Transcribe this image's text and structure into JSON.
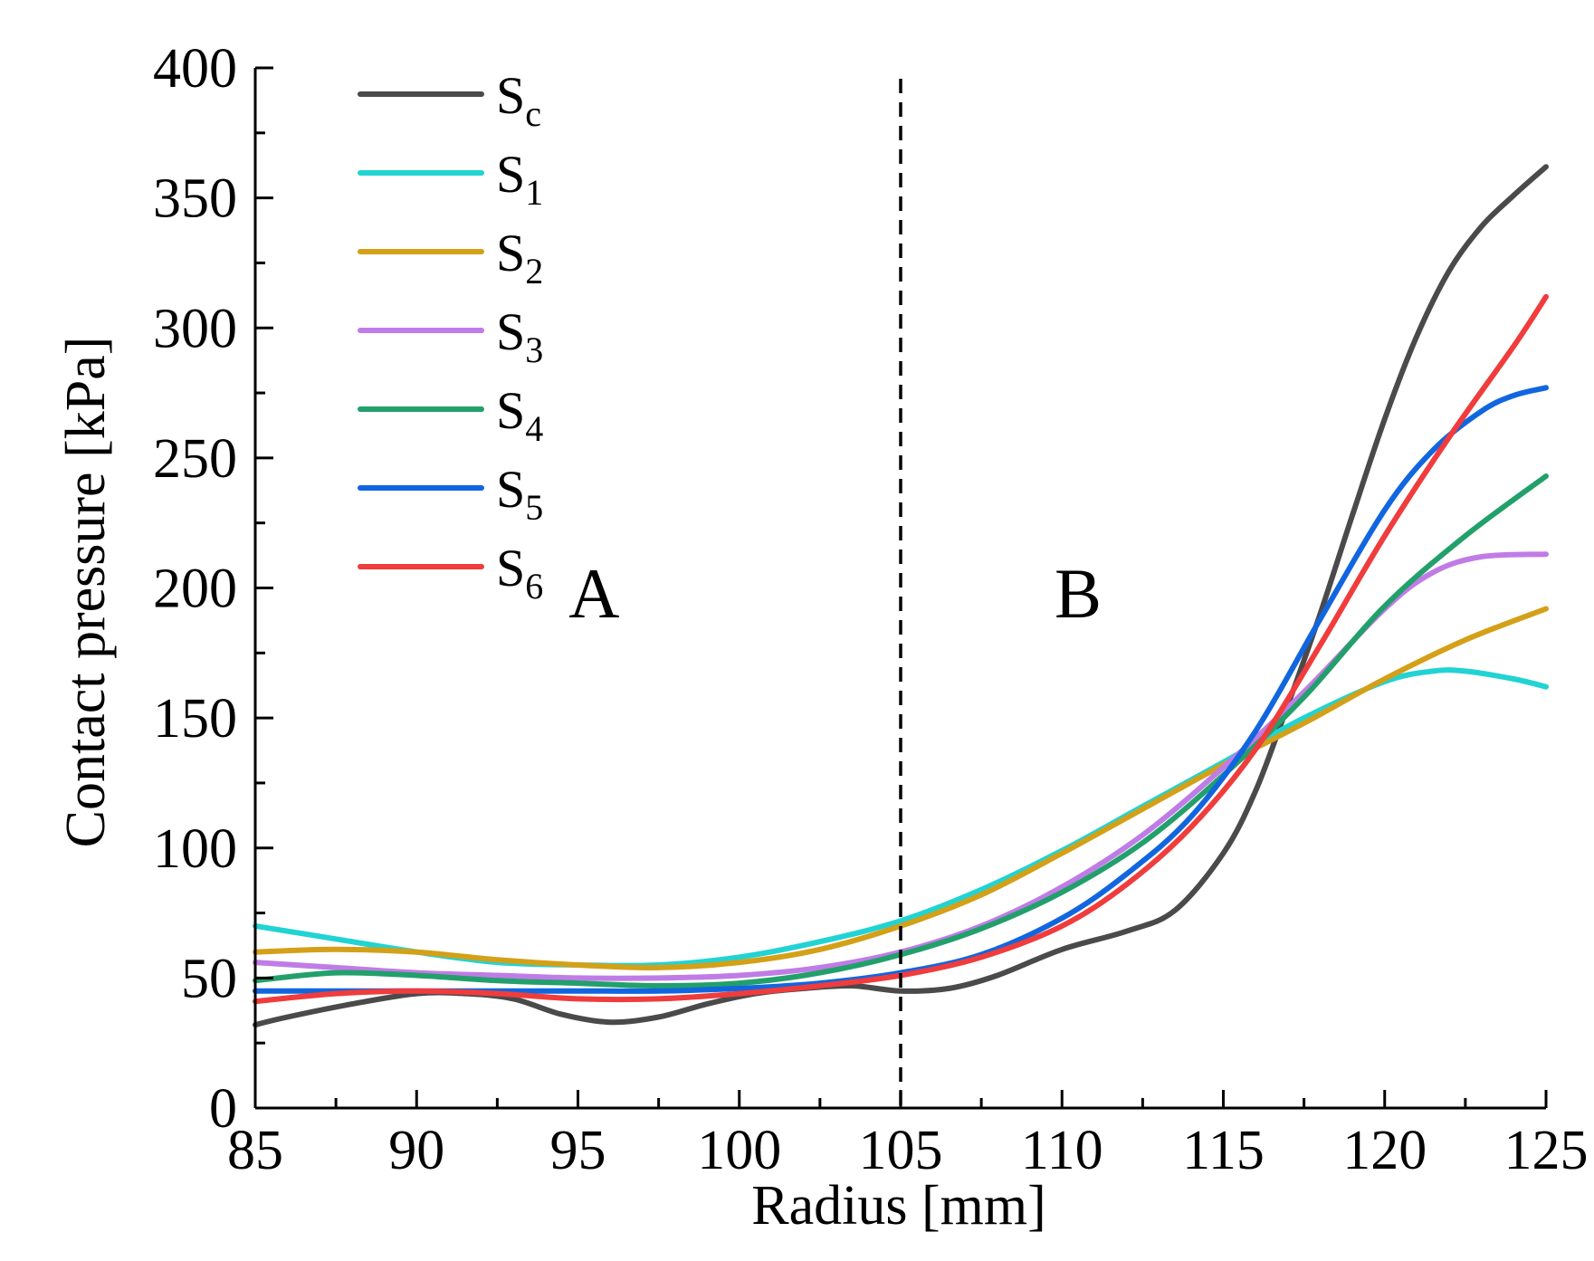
{
  "chart_data": {
    "type": "line",
    "xlabel": "Radius [mm]",
    "ylabel": "Contact pressure [kPa]",
    "xlim": [
      85,
      125
    ],
    "ylim": [
      0,
      400
    ],
    "xticks": [
      85,
      90,
      95,
      100,
      105,
      110,
      115,
      120,
      125
    ],
    "yticks": [
      0,
      50,
      100,
      150,
      200,
      250,
      300,
      350,
      400
    ],
    "x_minor_step": 2.5,
    "y_minor_step": 25,
    "divider": {
      "x": 105,
      "style": "dashed"
    },
    "regions": [
      {
        "label": "A",
        "x": 95.5,
        "y": 198
      },
      {
        "label": "B",
        "x": 110.5,
        "y": 198
      }
    ],
    "legend_position": "top-left",
    "series": [
      {
        "name": "S",
        "sub": "c",
        "color": "#4a4a4a",
        "x": [
          85,
          86,
          88,
          90,
          91.5,
          93,
          94.5,
          96,
          97.5,
          99,
          100.5,
          102,
          103.5,
          105,
          106.5,
          108,
          110,
          112,
          113.5,
          115,
          116,
          117,
          118,
          119,
          120,
          121,
          122,
          123,
          124,
          125
        ],
        "y": [
          32,
          35,
          40,
          44,
          44,
          42,
          36,
          33,
          35,
          40,
          44,
          46,
          47,
          45,
          46,
          51,
          61,
          68,
          76,
          98,
          122,
          155,
          190,
          228,
          265,
          297,
          322,
          339,
          351,
          362
        ]
      },
      {
        "name": "S",
        "sub": "1",
        "color": "#22d3d3",
        "x": [
          85,
          87.5,
          90,
          92.5,
          95,
          97.5,
          100,
          102.5,
          105,
          107.5,
          110,
          112.5,
          115,
          117.5,
          120,
          121.5,
          122.5,
          124,
          125
        ],
        "y": [
          70,
          65,
          60,
          56,
          55,
          55,
          58,
          64,
          72,
          84,
          99,
          116,
          133,
          150,
          164,
          168,
          168,
          165,
          162
        ]
      },
      {
        "name": "S",
        "sub": "2",
        "color": "#d4a017",
        "x": [
          85,
          87.5,
          90,
          92.5,
          95,
          97.5,
          100,
          102.5,
          105,
          107.5,
          110,
          112.5,
          115,
          117.5,
          120,
          122.5,
          125
        ],
        "y": [
          60,
          61,
          60,
          57,
          55,
          54,
          56,
          61,
          70,
          82,
          98,
          115,
          132,
          148,
          165,
          180,
          192
        ]
      },
      {
        "name": "S",
        "sub": "3",
        "color": "#c07ce6",
        "x": [
          85,
          87.5,
          90,
          92.5,
          95,
          97.5,
          100,
          102.5,
          105,
          107.5,
          110,
          112.5,
          115,
          117.5,
          120,
          121.5,
          123,
          125
        ],
        "y": [
          56,
          54,
          52,
          51,
          50,
          50,
          51,
          54,
          60,
          70,
          85,
          105,
          131,
          160,
          192,
          206,
          212,
          213
        ]
      },
      {
        "name": "S",
        "sub": "4",
        "color": "#22a06b",
        "x": [
          85,
          87.5,
          90,
          92.5,
          95,
          97.5,
          100,
          102.5,
          105,
          107.5,
          110,
          112.5,
          115,
          117.5,
          120,
          122.5,
          125
        ],
        "y": [
          49,
          52,
          51,
          49,
          48,
          47,
          48,
          52,
          59,
          69,
          83,
          102,
          128,
          158,
          193,
          220,
          243
        ]
      },
      {
        "name": "S",
        "sub": "5",
        "color": "#1166e0",
        "x": [
          85,
          87.5,
          90,
          92.5,
          95,
          97.5,
          100,
          102.5,
          105,
          107.5,
          110,
          112,
          114,
          116,
          118,
          120,
          121.5,
          123,
          124,
          125
        ],
        "y": [
          45,
          45,
          45,
          45,
          45,
          45,
          46,
          48,
          52,
          59,
          73,
          90,
          112,
          145,
          188,
          230,
          253,
          268,
          274,
          277
        ]
      },
      {
        "name": "S",
        "sub": "6",
        "color": "#f03c3c",
        "x": [
          85,
          87.5,
          90,
          92.5,
          95,
          97.5,
          100,
          102.5,
          105,
          107.5,
          110,
          112,
          114,
          116,
          118,
          120,
          122,
          124,
          125
        ],
        "y": [
          41,
          44,
          45,
          44,
          42,
          42,
          44,
          47,
          51,
          58,
          70,
          86,
          108,
          138,
          178,
          220,
          258,
          293,
          312
        ]
      }
    ]
  }
}
